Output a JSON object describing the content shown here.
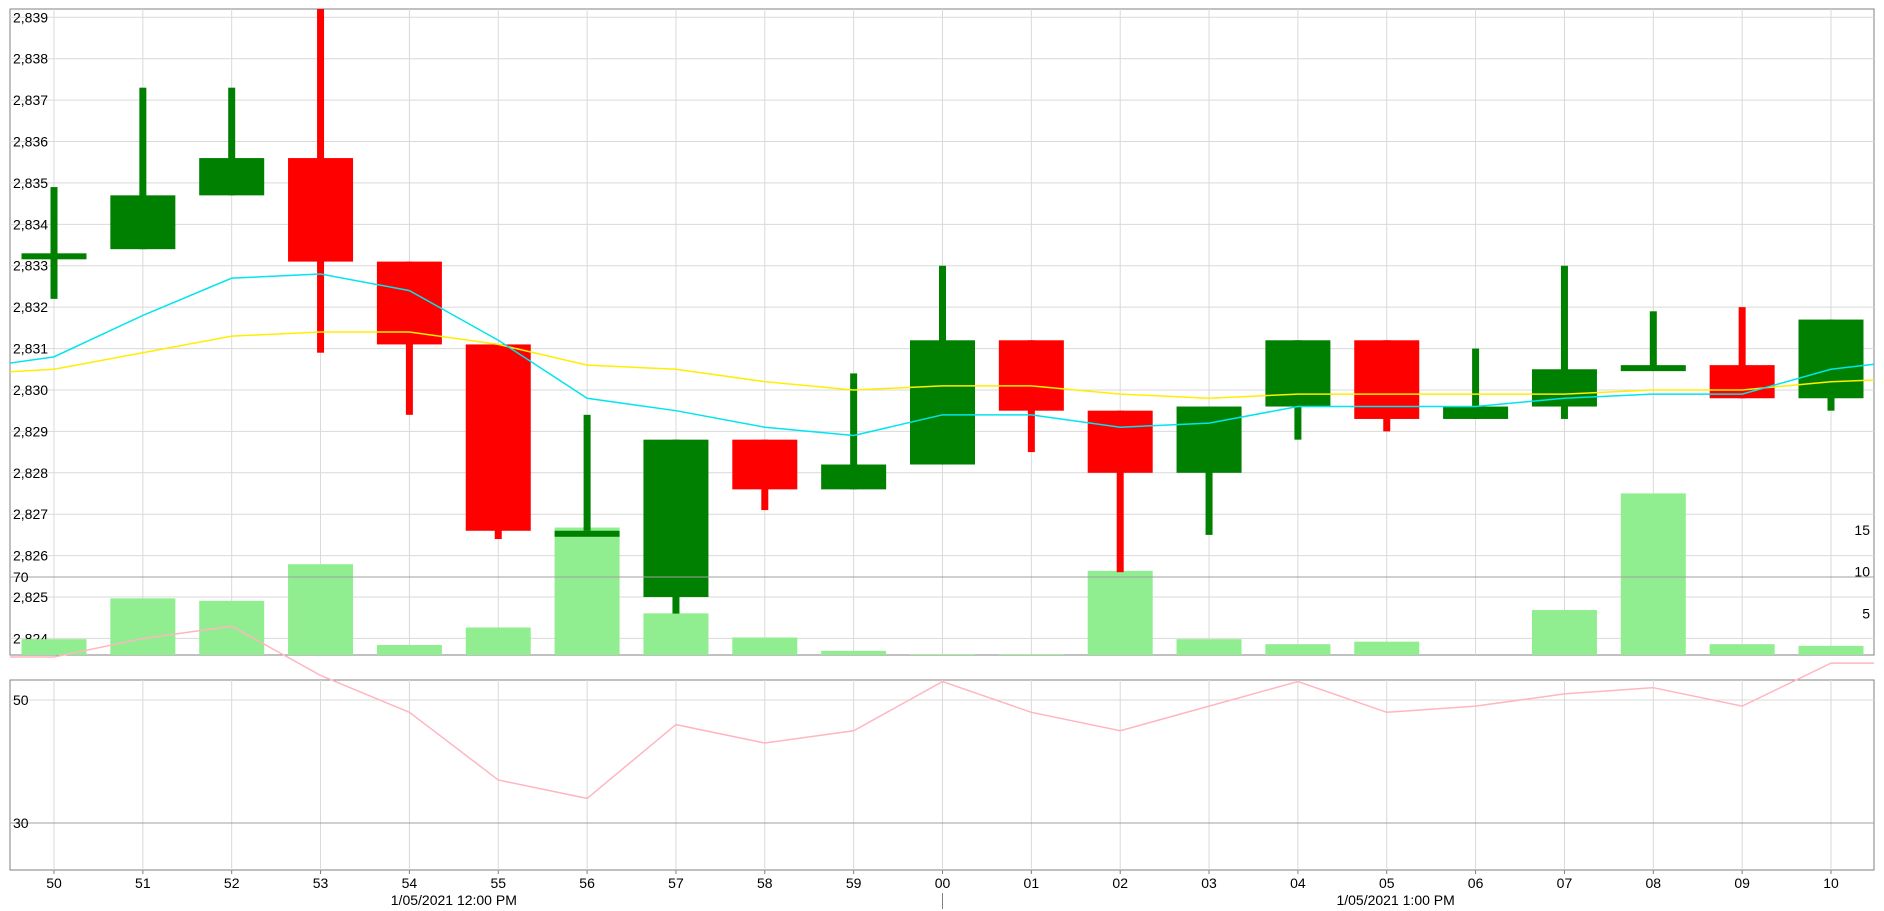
{
  "chart_data": {
    "type": "candlestick",
    "x_labels": [
      "50",
      "51",
      "52",
      "53",
      "54",
      "55",
      "56",
      "57",
      "58",
      "59",
      "00",
      "01",
      "02",
      "03",
      "04",
      "05",
      "06",
      "07",
      "08",
      "09",
      "10"
    ],
    "date_labels": [
      {
        "text": "1/05/2021 12:00 PM",
        "at_index": 4.5
      },
      {
        "text": "1/05/2021 1:00 PM",
        "at_index": 15.1
      }
    ],
    "price_axis": {
      "ticks": [
        "2,824",
        "2,825",
        "2,826",
        "2,827",
        "2,828",
        "2,829",
        "2,830",
        "2,831",
        "2,832",
        "2,833",
        "2,834",
        "2,835",
        "2,836",
        "2,837",
        "2,838",
        "2,839"
      ],
      "ylim": [
        2823.6,
        2839.2
      ]
    },
    "candles": [
      {
        "open": 2833.3,
        "high": 2834.9,
        "low": 2832.2,
        "close": 2833.3
      },
      {
        "open": 2833.4,
        "high": 2837.3,
        "low": 2833.4,
        "close": 2834.7
      },
      {
        "open": 2834.7,
        "high": 2837.3,
        "low": 2834.7,
        "close": 2835.6
      },
      {
        "open": 2835.6,
        "high": 2839.2,
        "low": 2830.9,
        "close": 2833.1
      },
      {
        "open": 2833.1,
        "high": 2833.1,
        "low": 2829.4,
        "close": 2831.1
      },
      {
        "open": 2831.1,
        "high": 2831.1,
        "low": 2826.4,
        "close": 2826.6
      },
      {
        "open": 2826.6,
        "high": 2829.4,
        "low": 2826.6,
        "close": 2826.6
      },
      {
        "open": 2825.0,
        "high": 2828.8,
        "low": 2824.6,
        "close": 2828.8
      },
      {
        "open": 2828.8,
        "high": 2828.8,
        "low": 2827.1,
        "close": 2827.6
      },
      {
        "open": 2827.6,
        "high": 2830.4,
        "low": 2827.6,
        "close": 2828.2
      },
      {
        "open": 2828.2,
        "high": 2833.0,
        "low": 2828.2,
        "close": 2831.2
      },
      {
        "open": 2831.2,
        "high": 2831.2,
        "low": 2828.5,
        "close": 2829.5
      },
      {
        "open": 2829.5,
        "high": 2829.5,
        "low": 2825.6,
        "close": 2828.0
      },
      {
        "open": 2828.0,
        "high": 2829.6,
        "low": 2826.5,
        "close": 2829.6
      },
      {
        "open": 2829.6,
        "high": 2831.2,
        "low": 2828.8,
        "close": 2831.2
      },
      {
        "open": 2831.2,
        "high": 2831.2,
        "low": 2829.0,
        "close": 2829.3
      },
      {
        "open": 2829.3,
        "high": 2831.0,
        "low": 2829.3,
        "close": 2829.6
      },
      {
        "open": 2829.6,
        "high": 2833.0,
        "low": 2829.3,
        "close": 2830.5
      },
      {
        "open": 2830.5,
        "high": 2831.9,
        "low": 2830.5,
        "close": 2830.6
      },
      {
        "open": 2830.6,
        "high": 2832.0,
        "low": 2829.8,
        "close": 2829.8
      },
      {
        "open": 2829.8,
        "high": 2831.7,
        "low": 2829.5,
        "close": 2831.7
      }
    ],
    "ma_cyan": [
      2830.8,
      2831.8,
      2832.7,
      2832.8,
      2832.4,
      2831.2,
      2829.8,
      2829.5,
      2829.1,
      2828.9,
      2829.4,
      2829.4,
      2829.1,
      2829.2,
      2829.6,
      2829.6,
      2829.6,
      2829.8,
      2829.9,
      2829.9,
      2830.5
    ],
    "ma_yellow": [
      2830.5,
      2830.9,
      2831.3,
      2831.4,
      2831.4,
      2831.1,
      2830.6,
      2830.5,
      2830.2,
      2830.0,
      2830.1,
      2830.1,
      2829.9,
      2829.8,
      2829.9,
      2829.9,
      2829.9,
      2829.9,
      2830.0,
      2830.0,
      2830.2
    ],
    "volume": {
      "values": [
        1.9,
        6.8,
        6.5,
        10.9,
        1.2,
        3.3,
        15.3,
        5.0,
        2.1,
        0.5,
        0.1,
        0.1,
        10.1,
        1.9,
        1.3,
        1.6,
        0,
        5.4,
        19.4,
        1.3,
        1.1
      ],
      "ticks": [
        "5",
        "10",
        "15"
      ]
    },
    "oscillator": {
      "values": [
        57,
        60,
        62,
        54,
        48,
        37,
        34,
        46,
        43,
        45,
        53,
        48,
        45,
        49,
        53,
        48,
        49,
        51,
        52,
        49,
        56
      ],
      "ticks": [
        "30",
        "50",
        "70"
      ],
      "ylim": [
        20,
        77
      ]
    },
    "colors": {
      "up": "#008000",
      "down": "#ff0000",
      "volume": "#90ee90",
      "ma_cyan": "#00e5ee",
      "ma_yellow": "#ffee00",
      "oscillator": "#ffb6c1",
      "grid": "#d9d9d9",
      "border": "#808080"
    }
  }
}
